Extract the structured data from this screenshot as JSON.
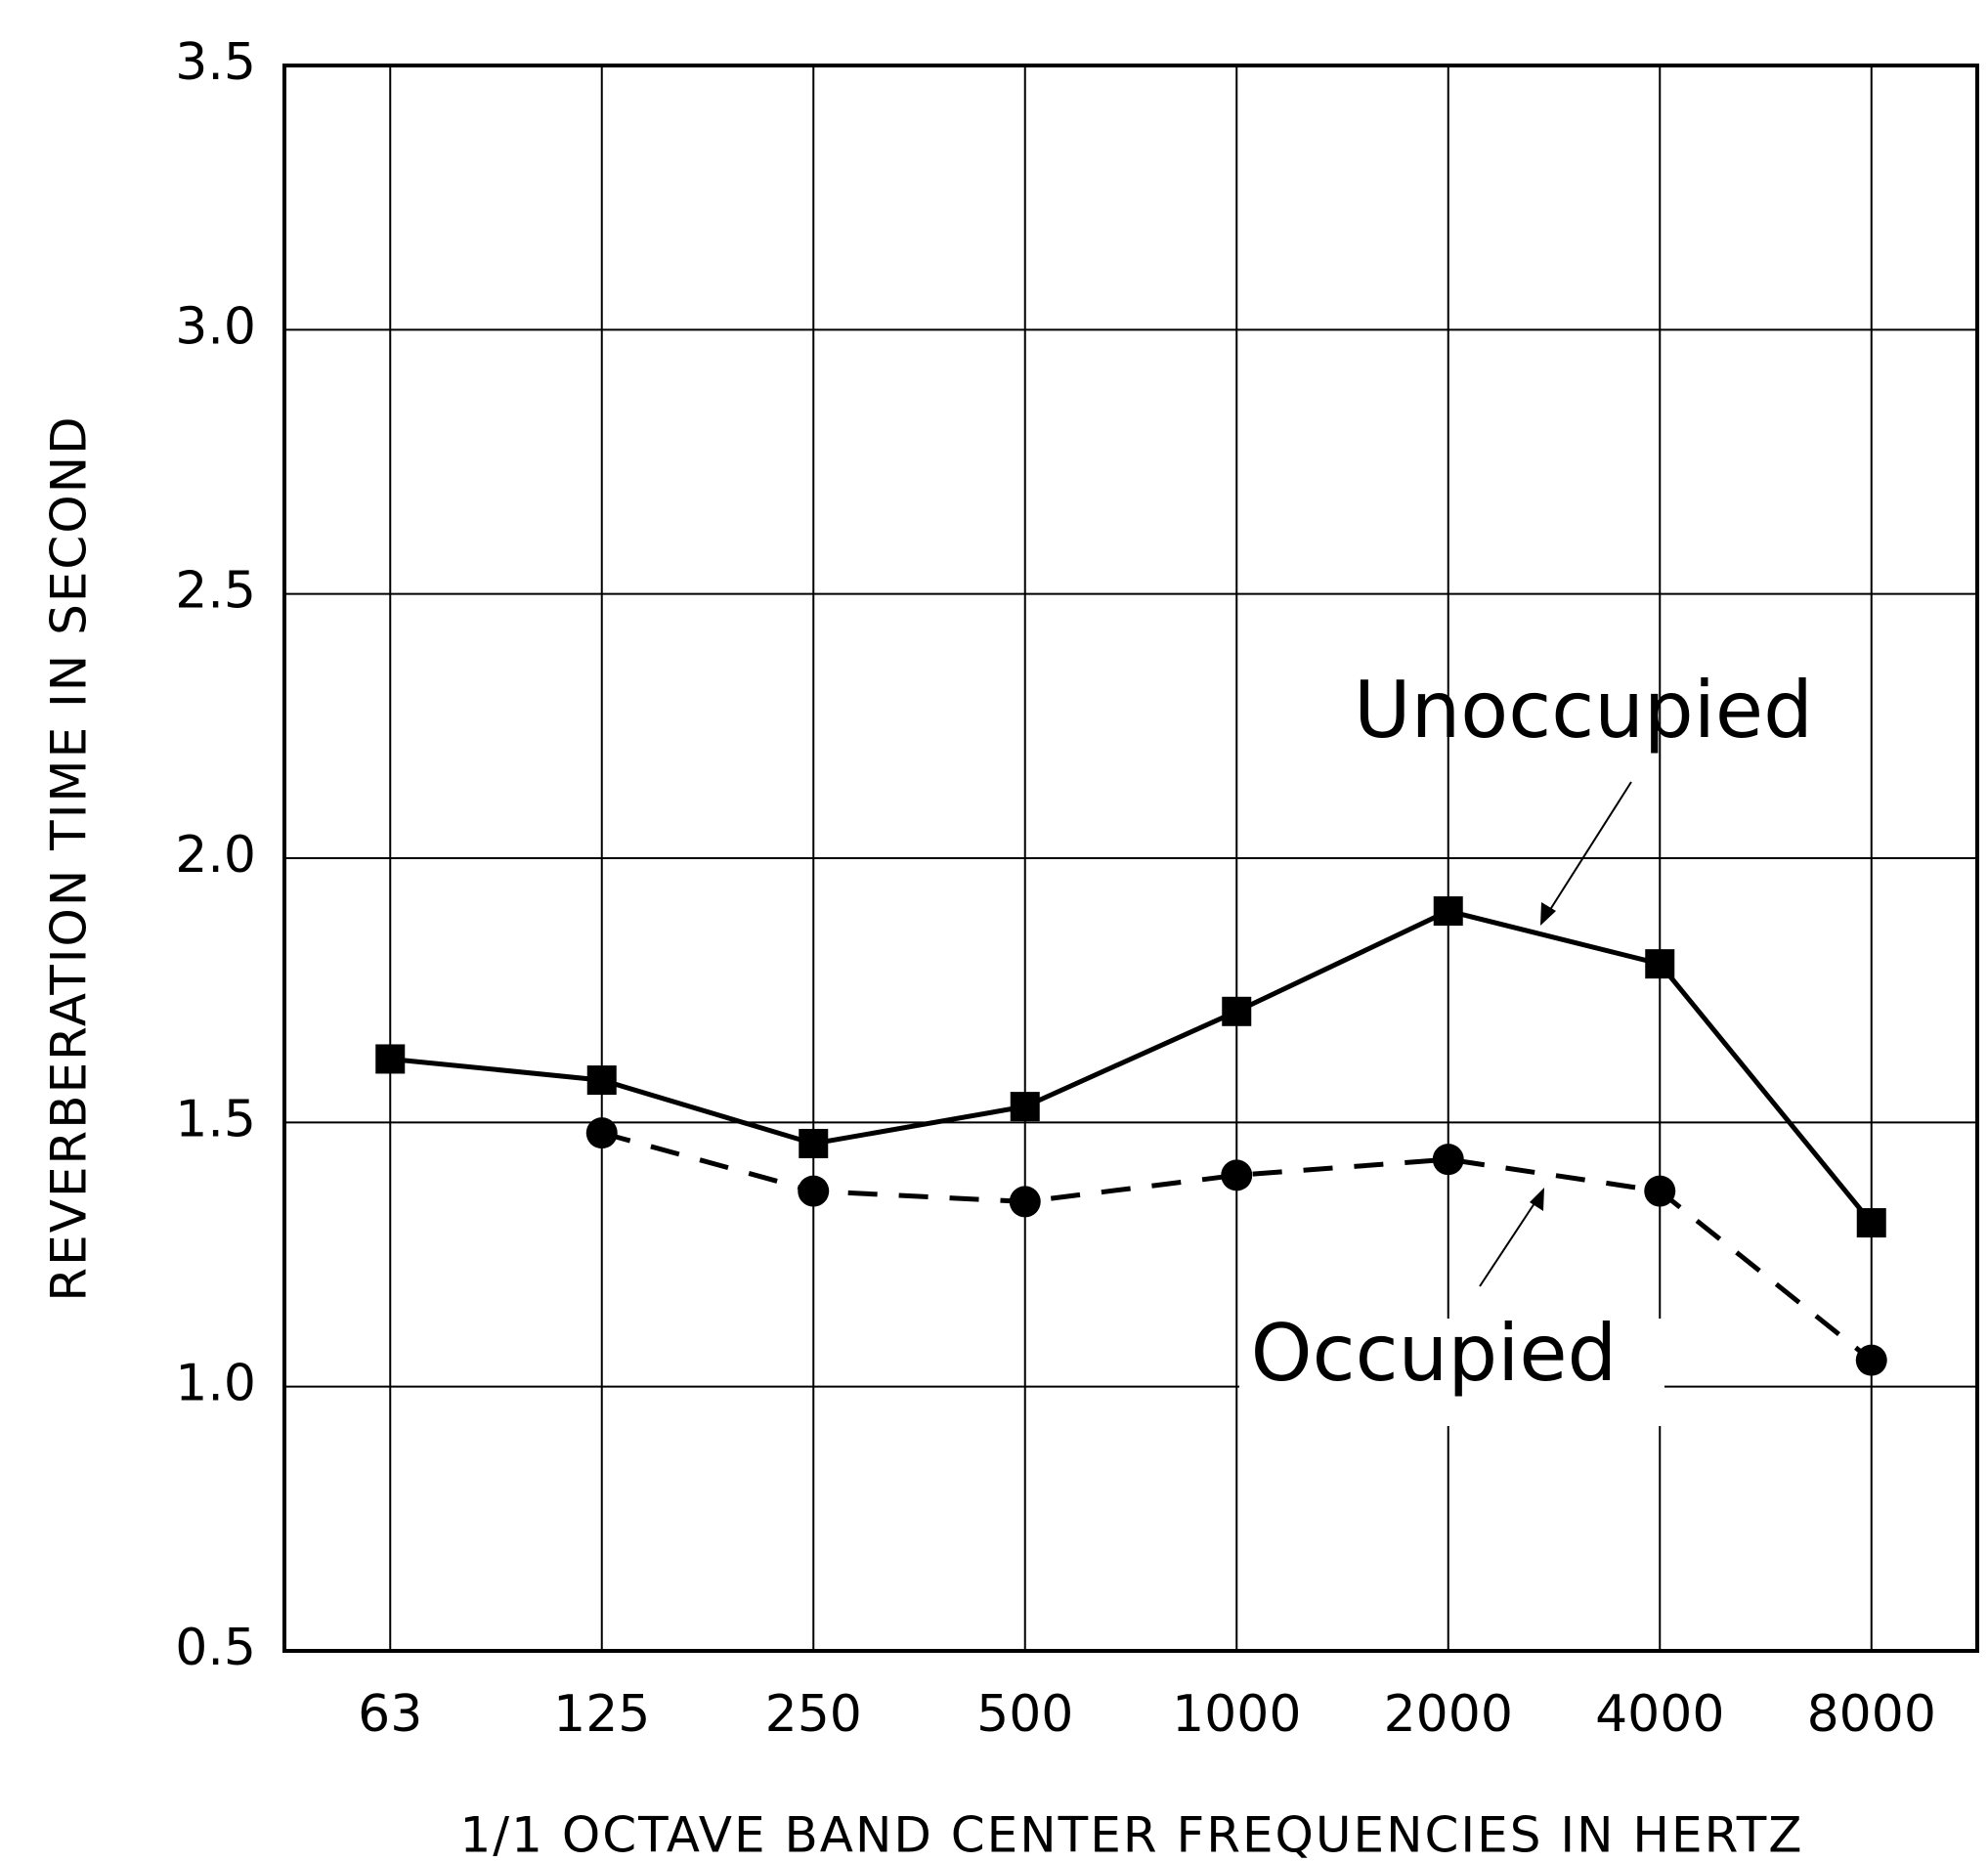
{
  "chart_data": {
    "type": "line",
    "y_label": "REVERBERATION TIME IN SECOND",
    "x_label": "1/1 OCTAVE BAND CENTER FREQUENCIES IN HERTZ",
    "categories": [
      "63",
      "125",
      "250",
      "500",
      "1000",
      "2000",
      "4000",
      "8000"
    ],
    "series": [
      {
        "name": "Unoccupied",
        "color": "#000000",
        "dash": false,
        "marker": "square",
        "values": [
          1.62,
          1.58,
          1.46,
          1.53,
          1.71,
          1.9,
          1.8,
          1.31
        ]
      },
      {
        "name": "Occupied",
        "color": "#000000",
        "dash": true,
        "marker": "circle",
        "values": [
          null,
          1.48,
          1.37,
          1.35,
          1.4,
          1.43,
          1.37,
          1.05
        ]
      }
    ],
    "ylim": [
      0.5,
      3.5
    ],
    "yticks": [
      0.5,
      {
        "value": 1,
        "label": "1.0"
      },
      1.5,
      {
        "value": 2,
        "label": "2.0"
      },
      2.5,
      {
        "value": 3,
        "label": "3.0"
      },
      3.5
    ],
    "grid": true
  }
}
